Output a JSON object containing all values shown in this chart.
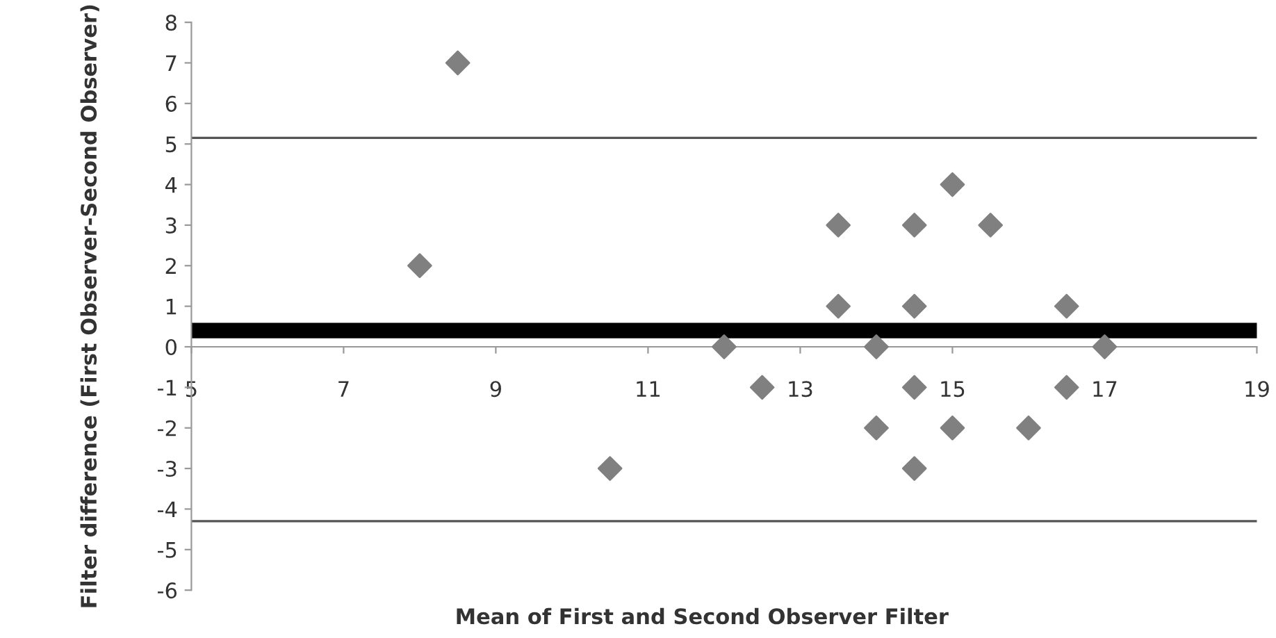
{
  "chart_data": {
    "type": "scatter",
    "xlabel": "Mean of First and Second Observer Filter",
    "ylabel": "Filter difference (First Observer-Second Observer)",
    "x": [
      8.5,
      8,
      10.5,
      12,
      12.5,
      13.5,
      13.5,
      14,
      14,
      14.5,
      14.5,
      14.5,
      14.5,
      15,
      15,
      15.5,
      16,
      16.5,
      16.5,
      17
    ],
    "series": [
      {
        "color": "#808080",
        "values": [
          7,
          2,
          -3,
          0,
          -1,
          3,
          1,
          0,
          -2,
          3,
          1,
          -1,
          -3,
          4,
          -2,
          3,
          -2,
          1,
          -1,
          0
        ]
      }
    ],
    "marker": "diamond",
    "xlim": [
      5,
      19
    ],
    "xticks": [
      5,
      7,
      9,
      11,
      13,
      15,
      17,
      19
    ],
    "ylim": [
      -6,
      8
    ],
    "yticks": [
      -6,
      -5,
      -4,
      -3,
      -2,
      -1,
      0,
      1,
      2,
      3,
      4,
      5,
      6,
      7,
      8
    ],
    "ref_lines": [
      {
        "axis": "y",
        "value": 5.15,
        "color": "#555555",
        "line_style": "solid"
      },
      {
        "axis": "y",
        "value": 0.4,
        "color": "#000000",
        "line_style": "solid"
      },
      {
        "axis": "y",
        "value": -4.3,
        "color": "#555555",
        "line_style": "solid"
      }
    ],
    "grid": false
  }
}
